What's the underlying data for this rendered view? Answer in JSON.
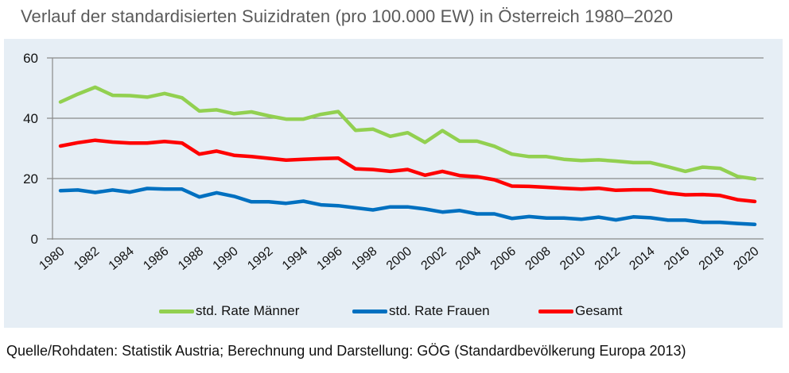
{
  "chart_data": {
    "type": "line",
    "title": "Verlauf der standardisierten Suizidraten (pro 100.000 EW) in Österreich 1980–2020",
    "xlabel": "",
    "ylabel": "",
    "x": [
      1980,
      1981,
      1982,
      1983,
      1984,
      1985,
      1986,
      1987,
      1988,
      1989,
      1990,
      1991,
      1992,
      1993,
      1994,
      1995,
      1996,
      1997,
      1998,
      1999,
      2000,
      2001,
      2002,
      2003,
      2004,
      2005,
      2006,
      2007,
      2008,
      2009,
      2010,
      2011,
      2012,
      2013,
      2014,
      2015,
      2016,
      2017,
      2018,
      2019,
      2020
    ],
    "xticks": [
      "1980",
      "1982",
      "1984",
      "1986",
      "1988",
      "1990",
      "1992",
      "1994",
      "1996",
      "1998",
      "2000",
      "2002",
      "2004",
      "2006",
      "2008",
      "2010",
      "2012",
      "2014",
      "2016",
      "2018",
      "2020"
    ],
    "yticks": [
      "0",
      "20",
      "40",
      "60"
    ],
    "ylim": [
      0,
      60
    ],
    "xlim": [
      1980,
      2020
    ],
    "grid": "horizontal",
    "legend_position": "bottom",
    "series": [
      {
        "name": "std. Rate Männer",
        "color": "#92d050",
        "values": [
          45.4,
          48.0,
          50.3,
          47.6,
          47.5,
          47.0,
          48.2,
          46.8,
          42.4,
          42.8,
          41.5,
          42.1,
          40.8,
          39.7,
          39.7,
          41.3,
          42.2,
          36.0,
          36.4,
          34.0,
          35.2,
          32.0,
          35.9,
          32.4,
          32.4,
          30.7,
          28.1,
          27.3,
          27.3,
          26.4,
          26.0,
          26.2,
          25.8,
          25.3,
          25.3,
          23.9,
          22.4,
          23.8,
          23.4,
          20.7,
          19.9
        ]
      },
      {
        "name": "std. Rate Frauen",
        "color": "#0070c0",
        "values": [
          16.0,
          16.2,
          15.4,
          16.2,
          15.5,
          16.7,
          16.5,
          16.5,
          13.9,
          15.3,
          14.1,
          12.3,
          12.3,
          11.8,
          12.5,
          11.3,
          11.0,
          10.3,
          9.6,
          10.6,
          10.6,
          9.9,
          8.9,
          9.4,
          8.3,
          8.3,
          6.8,
          7.4,
          6.9,
          6.9,
          6.5,
          7.2,
          6.3,
          7.3,
          7.0,
          6.2,
          6.2,
          5.5,
          5.5,
          5.1,
          4.8
        ]
      },
      {
        "name": "Gesamt",
        "color": "#ff0000",
        "values": [
          30.8,
          31.9,
          32.7,
          32.1,
          31.8,
          31.8,
          32.3,
          31.8,
          28.1,
          29.1,
          27.7,
          27.3,
          26.7,
          26.1,
          26.4,
          26.6,
          26.8,
          23.2,
          23.0,
          22.4,
          23.0,
          21.1,
          22.4,
          21.0,
          20.6,
          19.6,
          17.5,
          17.4,
          17.1,
          16.8,
          16.5,
          16.8,
          16.1,
          16.3,
          16.3,
          15.2,
          14.6,
          14.7,
          14.4,
          13.0,
          12.4
        ]
      }
    ]
  },
  "title": "Verlauf der standardisierten Suizidraten (pro 100.000 EW) in Österreich 1980–2020",
  "legend": [
    {
      "label": "std. Rate Männer",
      "color": "#92d050"
    },
    {
      "label": "std. Rate Frauen",
      "color": "#0070c0"
    },
    {
      "label": "Gesamt",
      "color": "#ff0000"
    }
  ],
  "source": "Quelle/Rohdaten: Statistik Austria; Berechnung und Darstellung: GÖG (Standardbevölkerung Europa 2013)"
}
